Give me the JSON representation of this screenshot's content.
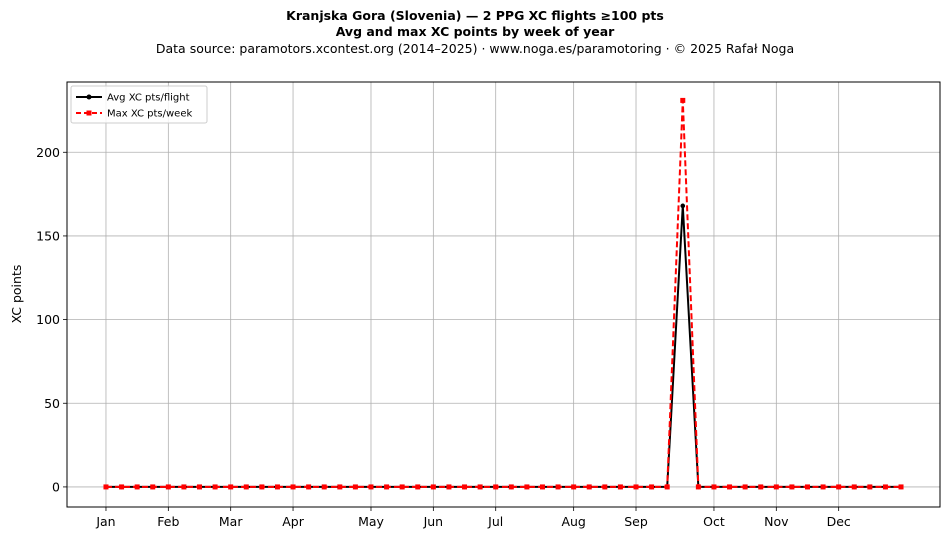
{
  "chart_data": {
    "type": "line",
    "title": "Kranjska Gora (Slovenia)  —  2 PPG XC flights ≥100 pts",
    "subtitle": "Avg and max XC points by week of year",
    "source_line": "Data source: paramotors.xcontest.org (2014–2025)  ·  www.noga.es/paramotoring  ·  © 2025 Rafał Noga",
    "xlabel": "",
    "ylabel": "XC points",
    "x": [
      1,
      2,
      3,
      4,
      5,
      6,
      7,
      8,
      9,
      10,
      11,
      12,
      13,
      14,
      15,
      16,
      17,
      18,
      19,
      20,
      21,
      22,
      23,
      24,
      25,
      26,
      27,
      28,
      29,
      30,
      31,
      32,
      33,
      34,
      35,
      36,
      37,
      38,
      39,
      40,
      41,
      42,
      43,
      44,
      45,
      46,
      47,
      48,
      49,
      50,
      51,
      52
    ],
    "xlim": [
      -1.5,
      54.5
    ],
    "ylim": [
      -12,
      242
    ],
    "yticks": [
      0,
      50,
      100,
      150,
      200
    ],
    "month_ticks": [
      {
        "label": "Jan",
        "week": 1
      },
      {
        "label": "Feb",
        "week": 5
      },
      {
        "label": "Mar",
        "week": 9
      },
      {
        "label": "Apr",
        "week": 13
      },
      {
        "label": "May",
        "week": 18
      },
      {
        "label": "Jun",
        "week": 22
      },
      {
        "label": "Jul",
        "week": 26
      },
      {
        "label": "Aug",
        "week": 31
      },
      {
        "label": "Sep",
        "week": 35
      },
      {
        "label": "Oct",
        "week": 40
      },
      {
        "label": "Nov",
        "week": 44
      },
      {
        "label": "Dec",
        "week": 48
      }
    ],
    "grid": true,
    "legend_position": "top-left",
    "series": [
      {
        "name": "Avg XC pts/flight",
        "color": "#000000",
        "style": "solid",
        "marker": "circle",
        "values": [
          0,
          0,
          0,
          0,
          0,
          0,
          0,
          0,
          0,
          0,
          0,
          0,
          0,
          0,
          0,
          0,
          0,
          0,
          0,
          0,
          0,
          0,
          0,
          0,
          0,
          0,
          0,
          0,
          0,
          0,
          0,
          0,
          0,
          0,
          0,
          0,
          0,
          168,
          0,
          0,
          0,
          0,
          0,
          0,
          0,
          0,
          0,
          0,
          0,
          0,
          0,
          0
        ]
      },
      {
        "name": "Max XC pts/week",
        "color": "#ff0000",
        "style": "dashed",
        "marker": "square",
        "values": [
          0,
          0,
          0,
          0,
          0,
          0,
          0,
          0,
          0,
          0,
          0,
          0,
          0,
          0,
          0,
          0,
          0,
          0,
          0,
          0,
          0,
          0,
          0,
          0,
          0,
          0,
          0,
          0,
          0,
          0,
          0,
          0,
          0,
          0,
          0,
          0,
          0,
          231,
          0,
          0,
          0,
          0,
          0,
          0,
          0,
          0,
          0,
          0,
          0,
          0,
          0,
          0
        ]
      }
    ]
  }
}
